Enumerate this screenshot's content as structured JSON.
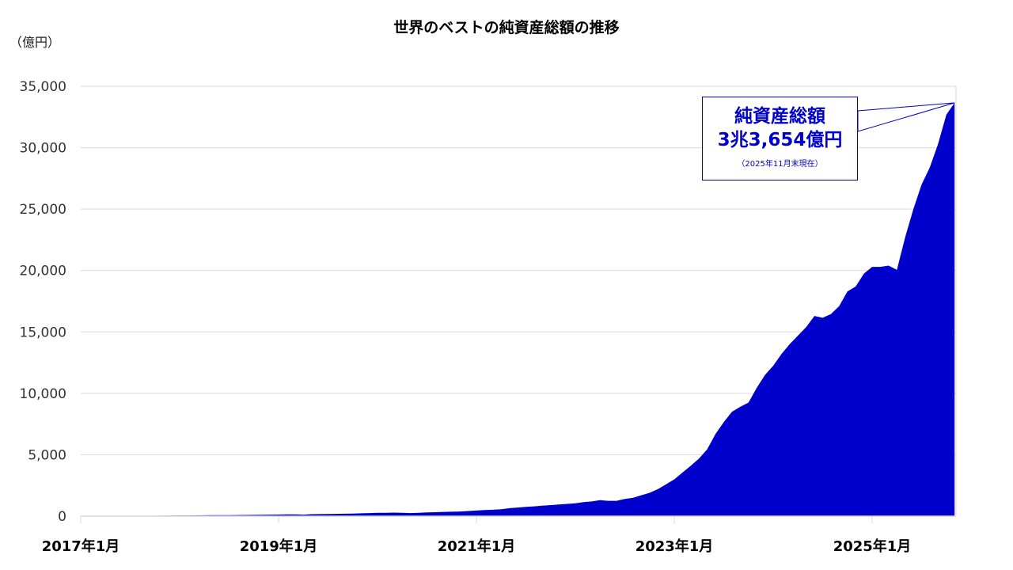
{
  "chart_data": {
    "type": "area",
    "title": "世界のベストの純資産総額の推移",
    "ylabel": "（億円）",
    "xlabel": "",
    "x_start": "2017-01",
    "x_end": "2025-11",
    "x_frequency": "monthly",
    "x_tick_labels": [
      "2017年1月",
      "2019年1月",
      "2021年1月",
      "2023年1月",
      "2025年1月"
    ],
    "y_tick_labels": [
      "0",
      "5,000",
      "10,000",
      "15,000",
      "20,000",
      "25,000",
      "30,000",
      "35,000"
    ],
    "ylim": [
      0,
      35000
    ],
    "grid": true,
    "fill_color": "#0000cc",
    "values": [
      0,
      0,
      0,
      0,
      0,
      0,
      0,
      0,
      0,
      30,
      40,
      50,
      55,
      60,
      65,
      70,
      75,
      80,
      85,
      90,
      95,
      100,
      110,
      120,
      130,
      140,
      150,
      120,
      160,
      170,
      180,
      190,
      200,
      210,
      230,
      250,
      270,
      280,
      290,
      280,
      250,
      270,
      300,
      320,
      350,
      360,
      380,
      420,
      460,
      500,
      520,
      560,
      650,
      700,
      760,
      800,
      850,
      900,
      950,
      1000,
      1050,
      1150,
      1200,
      1300,
      1250,
      1250,
      1400,
      1500,
      1700,
      1900,
      2200,
      2600,
      3000,
      3550,
      4100,
      4700,
      5450,
      6700,
      7650,
      8500,
      8900,
      9250,
      10450,
      11500,
      12250,
      13200,
      14000,
      14700,
      15400,
      16300,
      16150,
      16450,
      17100,
      18300,
      18700,
      19750,
      20300,
      20300,
      20400,
      20050,
      22700,
      25000,
      27000,
      28400,
      30300,
      32700,
      33654
    ],
    "annotation": {
      "line1": "純資産総額",
      "line2": "3兆3,654億円",
      "line3": "（2025年11月末現在）",
      "border_color": "#0000cc"
    }
  }
}
